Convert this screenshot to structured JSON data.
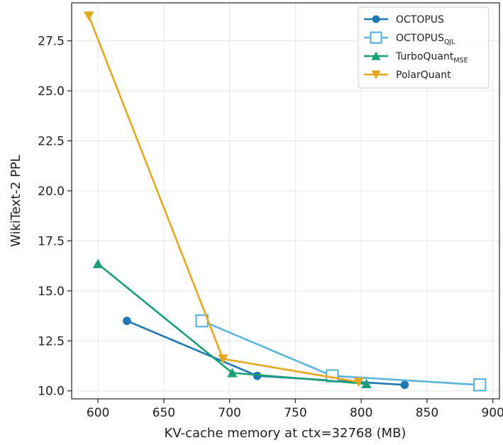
{
  "chart_data": {
    "type": "line",
    "xlabel": "KV-cache memory at ctx=32768 (MB)",
    "ylabel": "WikiText-2 PPL",
    "xlim": [
      580,
      905
    ],
    "ylim": [
      9.6,
      29.4
    ],
    "x_ticks": [
      600,
      650,
      700,
      750,
      800,
      850,
      900
    ],
    "y_ticks": [
      10.0,
      12.5,
      15.0,
      17.5,
      20.0,
      22.5,
      25.0,
      27.5
    ],
    "x_tick_labels": [
      "600",
      "650",
      "700",
      "750",
      "800",
      "850",
      "900"
    ],
    "y_tick_labels": [
      "10.0",
      "12.5",
      "15.0",
      "17.5",
      "20.0",
      "22.5",
      "25.0",
      "27.5"
    ],
    "grid": true,
    "legend_position": "top-right",
    "series": [
      {
        "name": "OCTOPUS",
        "name_sub": "",
        "color": "#1f77b4",
        "marker": "circle",
        "x": [
          622,
          721,
          833
        ],
        "y": [
          13.5,
          10.75,
          10.3
        ]
      },
      {
        "name": "OCTOPUS",
        "name_sub": "QJL",
        "color": "#5ab4e0",
        "marker": "square",
        "x": [
          679,
          778,
          890
        ],
        "y": [
          13.5,
          10.75,
          10.3
        ]
      },
      {
        "name": "TurboQuant",
        "name_sub": "MSE",
        "color": "#1a9e77",
        "marker": "triangle-up",
        "x": [
          600,
          702,
          804
        ],
        "y": [
          16.35,
          10.9,
          10.35
        ]
      },
      {
        "name": "PolarQuant",
        "name_sub": "",
        "color": "#e6a71e",
        "marker": "triangle-down",
        "x": [
          593,
          695,
          798
        ],
        "y": [
          28.75,
          11.6,
          10.45
        ]
      }
    ]
  }
}
